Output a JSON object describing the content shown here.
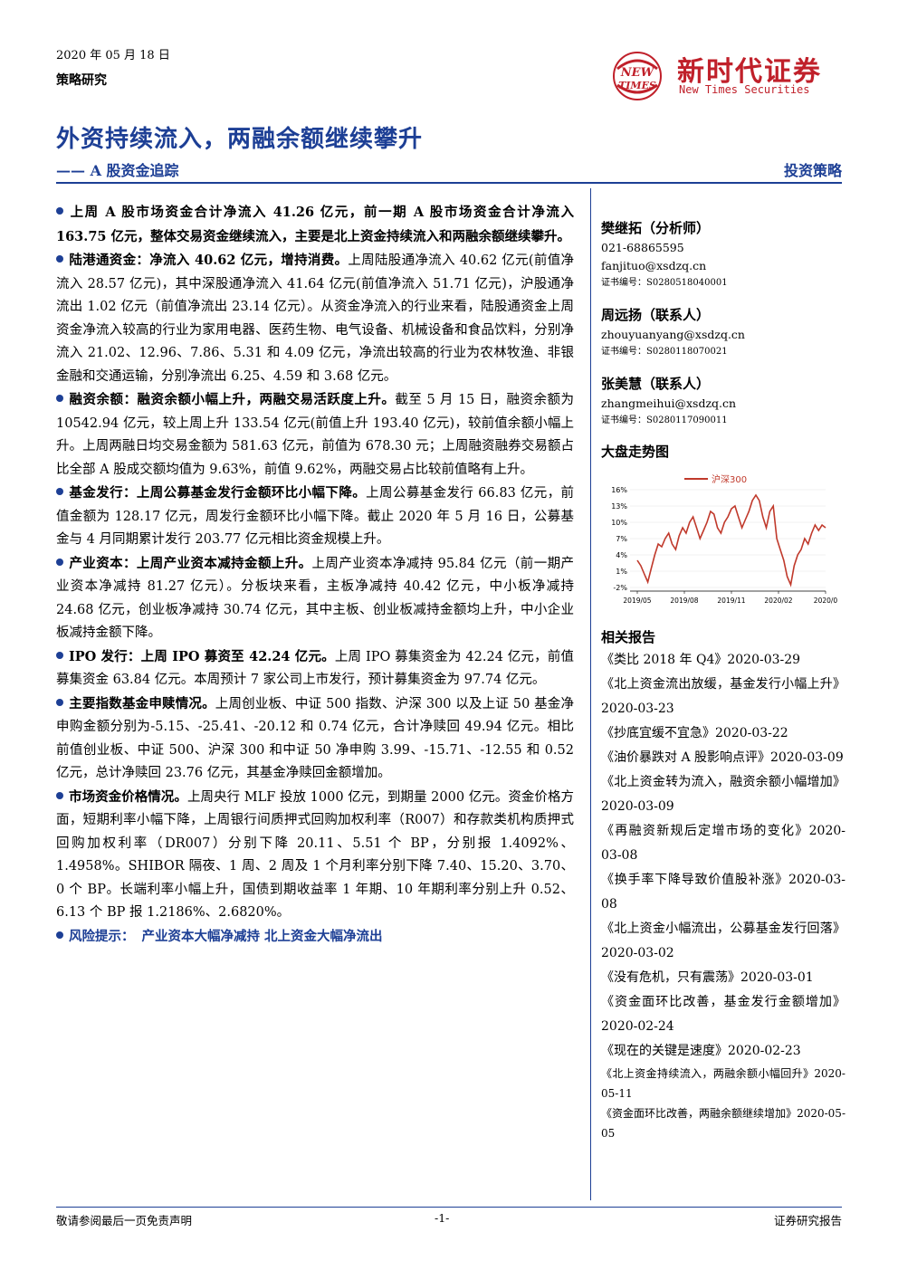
{
  "header": {
    "date": "2020 年 05 月 18 日",
    "category": "策略研究",
    "logo_badge_top": "NEW",
    "logo_badge_bottom": "TIMES",
    "logo_cn": "新时代证券",
    "logo_en": "New Times Securities",
    "title": "外资持续流入，两融余额继续攀升",
    "subtitle": "—— A 股资金追踪",
    "report_type": "投资策略"
  },
  "colors": {
    "accent": "#1d3f95",
    "brand_red": "#c0202a",
    "chart_line": "#c0392b"
  },
  "paragraphs": [
    {
      "lead": "上周 A 股市场资金合计净流入 41.26 亿元，前一期 A 股市场资金合计净流入 163.75 亿元，整体交易资金继续流入，主要是北上资金持续流入和两融余额继续攀升。",
      "body": ""
    },
    {
      "lead": "陆港通资金：净流入 40.62 亿元，增持消费。",
      "body": "上周陆股通净流入 40.62 亿元(前值净流入 28.57 亿元)，其中深股通净流入 41.64 亿元(前值净流入 51.71 亿元)，沪股通净流出 1.02 亿元（前值净流出 23.14 亿元）。从资金净流入的行业来看，陆股通资金上周资金净流入较高的行业为家用电器、医药生物、电气设备、机械设备和食品饮料，分别净流入 21.02、12.96、7.86、5.31 和 4.09 亿元，净流出较高的行业为农林牧渔、非银金融和交通运输，分别净流出 6.25、4.59 和 3.68 亿元。"
    },
    {
      "lead": "融资余额：融资余额小幅上升，两融交易活跃度上升。",
      "body": "截至 5 月 15 日，融资余额为 10542.94 亿元，较上周上升 133.54 亿元(前值上升 193.40 亿元)，较前值余额小幅上升。上周两融日均交易金额为 581.63 亿元，前值为 678.30 元；上周融资融券交易额占比全部 A 股成交额均值为 9.63%，前值 9.62%，两融交易占比较前值略有上升。"
    },
    {
      "lead": "基金发行：上周公募基金发行金额环比小幅下降。",
      "body": "上周公募基金发行 66.83 亿元，前值金额为 128.17 亿元，周发行金额环比小幅下降。截止 2020 年 5 月 16 日，公募基金与 4 月同期累计发行 203.77 亿元相比资金规模上升。"
    },
    {
      "lead": "产业资本：上周产业资本减持金额上升。",
      "body": "上周产业资本净减持 95.84 亿元（前一期产业资本净减持 81.27 亿元）。分板块来看，主板净减持 40.42 亿元，中小板净减持 24.68 亿元，创业板净减持 30.74 亿元，其中主板、创业板减持金额均上升，中小企业板减持金额下降。"
    },
    {
      "lead": "IPO 发行：上周 IPO 募资至 42.24 亿元。",
      "body": "上周 IPO 募集资金为 42.24 亿元，前值募集资金 63.84 亿元。本周预计 7 家公司上市发行，预计募集资金为 97.74 亿元。"
    },
    {
      "lead": "主要指数基金申赎情况。",
      "body": "上周创业板、中证 500 指数、沪深 300 以及上证 50 基金净申购金额分别为-5.15、-25.41、-20.12 和 0.74 亿元，合计净赎回 49.94 亿元。相比前值创业板、中证 500、沪深 300 和中证 50 净申购 3.99、-15.71、-12.55 和 0.52 亿元，总计净赎回 23.76 亿元，其基金净赎回金额增加。"
    },
    {
      "lead": "市场资金价格情况。",
      "body": "上周央行 MLF 投放 1000 亿元，到期量 2000 亿元。资金价格方面，短期利率小幅下降，上周银行间质押式回购加权利率（R007）和存款类机构质押式回购加权利率（DR007）分别下降 20.11、5.51 个 BP，分别报 1.4092%、1.4958%。SHIBOR 隔夜、1 周、2 周及 1 个月利率分别下降 7.40、15.20、3.70、0 个 BP。长端利率小幅上升，国债到期收益率 1 年期、10 年期利率分别上升 0.52、6.13 个 BP 报 1.2186%、2.6820%。"
    }
  ],
  "risk": {
    "lead": "风险提示：",
    "body": "产业资本大幅净减持   北上资金大幅净流出"
  },
  "analysts": [
    {
      "name": "樊继拓（分析师）",
      "phone": "021-68865595",
      "email": "fanjituo@xsdzq.cn",
      "cert": "证书编号：S0280518040001"
    },
    {
      "name": "周远扬（联系人）",
      "phone": "",
      "email": "zhouyuanyang@xsdzq.cn",
      "cert": "证书编号：S0280118070021"
    },
    {
      "name": "张美慧（联系人）",
      "phone": "",
      "email": "zhangmeihui@xsdzq.cn",
      "cert": "证书编号：S0280117090011"
    }
  ],
  "chart_section_title": "大盘走势图",
  "chart_data": {
    "type": "line",
    "title": "",
    "xlabel": "",
    "ylabel": "",
    "legend": "top-right",
    "x_ticks": [
      "2019/05",
      "2019/08",
      "2019/11",
      "2020/02",
      "2020/0"
    ],
    "y_ticks": [
      "16%",
      "13%",
      "10%",
      "7%",
      "4%",
      "1%",
      "-2%"
    ],
    "ylim": [
      -2,
      16
    ],
    "series": [
      {
        "name": "沪深300",
        "values": [
          3,
          2,
          0.5,
          -1,
          1.5,
          4,
          6,
          5.5,
          7,
          8,
          6,
          5,
          7.5,
          9,
          8,
          10,
          11,
          9,
          7,
          8.5,
          10,
          12,
          11.5,
          9,
          8,
          10,
          11,
          12.5,
          13,
          11,
          9,
          10.5,
          12,
          14,
          15,
          14,
          11,
          9,
          12,
          13,
          7,
          5,
          3,
          0,
          -1.5,
          2,
          4,
          5,
          7,
          6,
          8,
          9.5,
          8.5,
          9.5,
          9
        ]
      }
    ]
  },
  "related_title": "相关报告",
  "related_reports": [
    "《类比 2018 年 Q4》2020-03-29",
    "《北上资金流出放缓，基金发行小幅上升》2020-03-23",
    "《抄底宜缓不宜急》2020-03-22",
    "《油价暴跌对 A 股影响点评》2020-03-09",
    "《北上资金转为流入，融资余额小幅增加》2020-03-09",
    "《再融资新规后定增市场的变化》2020-03-08",
    "《换手率下降导致价值股补涨》2020-03-08",
    "《北上资金小幅流出，公募基金发行回落》2020-03-02",
    "《没有危机，只有震荡》2020-03-01",
    "《资金面环比改善，基金发行金额增加》2020-02-24",
    "《现在的关键是速度》2020-02-23"
  ],
  "related_reports_small": [
    "《北上资金持续流入，两融余额小幅回升》2020-05-11",
    "《资金面环比改善，两融余额继续增加》2020-05-05"
  ],
  "footer": {
    "disclaimer": "敬请参阅最后一页免责声明",
    "page": "-1-",
    "doc_type": "证券研究报告"
  }
}
